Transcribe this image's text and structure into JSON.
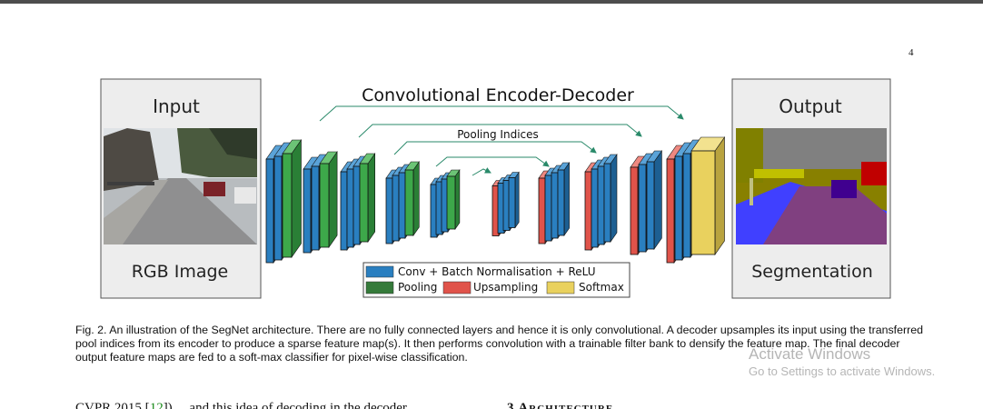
{
  "page": {
    "page_number": "4"
  },
  "figure": {
    "input_title": "Input",
    "input_caption": "RGB Image",
    "output_title": "Output",
    "output_caption": "Segmentation",
    "arch_title": "Convolutional Encoder-Decoder",
    "pooling_indices_label": "Pooling Indices",
    "legend": {
      "conv": "Conv + Batch Normalisation + ReLU",
      "pooling": "Pooling",
      "upsampling": "Upsampling",
      "softmax": "Softmax"
    },
    "colors": {
      "conv": "#2a7fc0",
      "pooling": "#3da84a",
      "upsampling": "#e0534a",
      "softmax": "#e9d15e",
      "arrow": "#2a8a6a"
    }
  },
  "caption": "Fig. 2. An illustration of the SegNet architecture. There are no fully connected layers and hence it is only convolutional. A decoder upsamples its input using the transferred pool indices from its encoder to produce a sparse feature map(s). It then performs convolution with a trainable filter bank to densify the feature map. The final decoder output feature maps are fed to a soft-max classifier for pixel-wise classification.",
  "next_text": {
    "start": "CVPR 2015 [",
    "cite": "12",
    "end": "]) ... and this idea of decoding in the decoder",
    "section": "3   Architecture"
  },
  "watermark": {
    "line1": "Activate Windows",
    "line2": "Go to Settings to activate Windows."
  }
}
